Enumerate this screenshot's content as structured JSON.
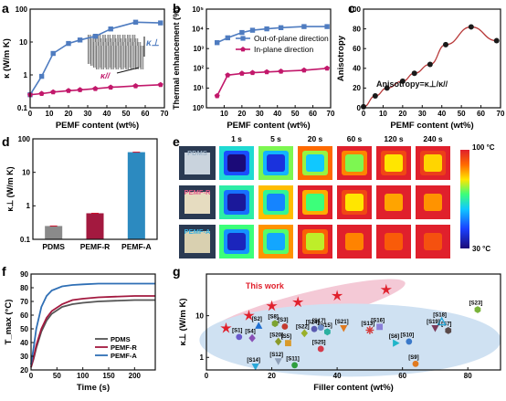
{
  "panels": {
    "a": {
      "letter": "a"
    },
    "b": {
      "letter": "b"
    },
    "c": {
      "letter": "c"
    },
    "d": {
      "letter": "d"
    },
    "e": {
      "letter": "e"
    },
    "f": {
      "letter": "f"
    },
    "g": {
      "letter": "g"
    }
  },
  "colors": {
    "blue": "#4f7cc0",
    "magenta": "#c2186b",
    "black": "#1a1a1a",
    "red_marker": "#e0202c",
    "gray_bar": "#8a8a8a",
    "crimson_bar": "#a3193f",
    "cyan_bar": "#2c8ac0",
    "pink_band": "#f4c9d6",
    "blue_band": "#cfe1f2"
  },
  "chart_data": [
    {
      "panel": "a",
      "type": "line",
      "xlabel": "PEMF content (wt%)",
      "ylabel": "κ (W/m K)",
      "yscale": "log",
      "xlim": [
        0,
        70
      ],
      "ylim": [
        0.1,
        100
      ],
      "xticks": [
        0,
        10,
        20,
        30,
        40,
        50,
        60,
        70
      ],
      "yticks": [
        0.1,
        1,
        10,
        100
      ],
      "ytick_labels": [
        "0.1",
        "1",
        "10",
        "100"
      ],
      "inset_labels": {
        "perp": "κ⊥",
        "par": "κ//"
      },
      "series": [
        {
          "name": "κ⊥",
          "x": [
            0,
            6,
            12,
            20,
            26,
            34,
            42,
            55,
            68
          ],
          "y": [
            0.25,
            0.9,
            4.5,
            9,
            11.5,
            15,
            25,
            40,
            38
          ]
        },
        {
          "name": "κ//",
          "x": [
            0,
            6,
            12,
            20,
            26,
            34,
            42,
            55,
            68
          ],
          "y": [
            0.25,
            0.27,
            0.3,
            0.33,
            0.35,
            0.38,
            0.42,
            0.46,
            0.5
          ]
        }
      ]
    },
    {
      "panel": "b",
      "type": "line",
      "xlabel": "PEMF content (wt%)",
      "ylabel": "Thermal enhancement (%)",
      "yscale": "log",
      "xlim": [
        0,
        70
      ],
      "ylim": [
        1,
        100000
      ],
      "xticks": [
        10,
        20,
        30,
        40,
        50,
        60,
        70
      ],
      "yticks": [
        1,
        10,
        100,
        1000,
        10000,
        100000
      ],
      "ytick_labels": [
        "10⁰",
        "10¹",
        "10²",
        "10³",
        "10⁴",
        "10⁵"
      ],
      "legend_position": "top-right",
      "series": [
        {
          "name": "Out-of-plane direction",
          "x": [
            6,
            12,
            20,
            26,
            34,
            42,
            55,
            68
          ],
          "y": [
            2000,
            3500,
            6500,
            8500,
            10000,
            11500,
            13000,
            13000
          ]
        },
        {
          "name": "In-plane direction",
          "x": [
            6,
            12,
            20,
            26,
            34,
            42,
            55,
            68
          ],
          "y": [
            4,
            45,
            55,
            60,
            65,
            70,
            80,
            100
          ]
        }
      ]
    },
    {
      "panel": "c",
      "type": "scatter",
      "xlabel": "PEMF content (wt%)",
      "ylabel": "Anisotropy",
      "xlim": [
        0,
        70
      ],
      "ylim": [
        0,
        100
      ],
      "xticks": [
        0,
        10,
        20,
        30,
        40,
        50,
        60,
        70
      ],
      "yticks": [
        0,
        20,
        40,
        60,
        80,
        100
      ],
      "annotation": "Anisotropy=κ⊥/κ//",
      "series": [
        {
          "name": "Anisotropy",
          "x": [
            0,
            6,
            12,
            20,
            26,
            34,
            42,
            55,
            68
          ],
          "y": [
            1,
            12,
            20,
            27,
            35,
            44,
            64,
            82,
            68
          ]
        }
      ]
    },
    {
      "panel": "d",
      "type": "bar",
      "ylabel": "κ⊥ (W/m K)",
      "yscale": "log",
      "ylim": [
        0.1,
        100
      ],
      "yticks": [
        0.1,
        1,
        10,
        100
      ],
      "ytick_labels": [
        "0.1",
        "1",
        "10",
        "100"
      ],
      "categories": [
        "PDMS",
        "PEMF-R",
        "PEMF-A"
      ],
      "values": [
        0.25,
        0.6,
        40
      ]
    },
    {
      "panel": "e",
      "type": "heatmap",
      "time_labels": [
        "1 s",
        "5 s",
        "20 s",
        "60 s",
        "120 s",
        "240 s"
      ],
      "row_labels": [
        "PDMS",
        "PEMF-R",
        "PEMF-A"
      ],
      "colorbar_max": "100 °C",
      "colorbar_min": "30 °C",
      "center_temperature_index": [
        [
          0.0,
          0.15,
          0.4,
          0.6,
          0.7,
          0.72
        ],
        [
          0.05,
          0.3,
          0.55,
          0.7,
          0.78,
          0.8
        ],
        [
          0.1,
          0.35,
          0.65,
          0.82,
          0.88,
          0.9
        ]
      ]
    },
    {
      "panel": "f",
      "type": "line",
      "xlabel": "Time (s)",
      "ylabel": "T_max (°C)",
      "xlim": [
        0,
        240
      ],
      "ylim": [
        20,
        90
      ],
      "xticks": [
        0,
        50,
        100,
        150,
        200
      ],
      "yticks": [
        20,
        30,
        40,
        50,
        60,
        70,
        80,
        90
      ],
      "legend_position": "lower-right",
      "series": [
        {
          "name": "PDMS",
          "x": [
            0,
            5,
            10,
            20,
            30,
            40,
            60,
            80,
            100,
            130,
            160,
            200,
            240
          ],
          "y": [
            22,
            28,
            36,
            48,
            56,
            61,
            66,
            68,
            69,
            70,
            70.5,
            71,
            71
          ]
        },
        {
          "name": "PEMF-R",
          "x": [
            0,
            5,
            10,
            20,
            30,
            40,
            60,
            80,
            100,
            130,
            160,
            200,
            240
          ],
          "y": [
            22,
            29,
            38,
            50,
            58,
            63,
            68,
            71,
            72,
            73,
            73.5,
            74,
            74
          ]
        },
        {
          "name": "PEMF-A",
          "x": [
            0,
            5,
            10,
            20,
            30,
            40,
            60,
            80,
            100,
            130,
            160,
            200,
            240
          ],
          "y": [
            24,
            36,
            50,
            66,
            74,
            78,
            81,
            82,
            82.5,
            83,
            83,
            83,
            83
          ]
        }
      ]
    },
    {
      "panel": "g",
      "type": "scatter",
      "xlabel": "Filler content (wt%)",
      "ylabel": "κ⊥ (W/m K)",
      "yscale": "log",
      "xlim": [
        0,
        90
      ],
      "ylim": [
        0.5,
        100
      ],
      "xticks": [
        0,
        20,
        40,
        60,
        80
      ],
      "yticks": [
        1,
        10
      ],
      "ytick_labels": [
        "1",
        "10"
      ],
      "annotation": "This work",
      "this_work": {
        "x": [
          6,
          13,
          20,
          28,
          40,
          55
        ],
        "y": [
          5,
          10,
          17,
          21,
          30,
          42
        ]
      },
      "references": [
        {
          "label": "[S1]",
          "x": 10,
          "y": 3.1,
          "shape": "circle",
          "color": "#6a5acd"
        },
        {
          "label": "[S2]",
          "x": 16,
          "y": 5.8,
          "shape": "triangle",
          "color": "#1f6fd1"
        },
        {
          "label": "[S3]",
          "x": 24,
          "y": 5.5,
          "shape": "circle",
          "color": "#c43a2e"
        },
        {
          "label": "[S4]",
          "x": 14,
          "y": 2.9,
          "shape": "diamond",
          "color": "#8a4fb5"
        },
        {
          "label": "[S5]",
          "x": 25,
          "y": 2.2,
          "shape": "square",
          "color": "#d99a2b"
        },
        {
          "label": "[S6]",
          "x": 58,
          "y": 2.2,
          "shape": "triangle-right",
          "color": "#1fb5c9"
        },
        {
          "label": "[S7]",
          "x": 74,
          "y": 4.4,
          "shape": "hexagon",
          "color": "#5a4a4a"
        },
        {
          "label": "[S8]",
          "x": 21,
          "y": 6.5,
          "shape": "hexagon",
          "color": "#7da331"
        },
        {
          "label": "[S9]",
          "x": 64,
          "y": 0.7,
          "shape": "circle",
          "color": "#e07a20"
        },
        {
          "label": "[S10]",
          "x": 62,
          "y": 2.4,
          "shape": "circle",
          "color": "#3a78c9"
        },
        {
          "label": "[S11]",
          "x": 27,
          "y": 0.65,
          "shape": "circle",
          "color": "#2f9e3e"
        },
        {
          "label": "[S12]",
          "x": 22,
          "y": 0.8,
          "shape": "triangle-down",
          "color": "#8fa0b8"
        },
        {
          "label": "[S13]",
          "x": 50,
          "y": 4.5,
          "shape": "asterisk",
          "color": "#d43a3a"
        },
        {
          "label": "[S14]",
          "x": 15,
          "y": 0.6,
          "shape": "triangle-down",
          "color": "#2aa8d8"
        },
        {
          "label": "[S15]",
          "x": 37,
          "y": 4.1,
          "shape": "hexagon",
          "color": "#2bb0a0"
        },
        {
          "label": "[S16]",
          "x": 53,
          "y": 5.4,
          "shape": "square",
          "color": "#8a7fd8"
        },
        {
          "label": "[S17]",
          "x": 35,
          "y": 5.2,
          "shape": "circle",
          "color": "#6b8cc9"
        },
        {
          "label": "[S18]",
          "x": 72,
          "y": 7.2,
          "shape": "triangle-outline",
          "color": "#2aa8d8"
        },
        {
          "label": "[S19]",
          "x": 70,
          "y": 5.0,
          "shape": "triangle-down",
          "color": "#7a3a5a"
        },
        {
          "label": "[S20]",
          "x": 22,
          "y": 2.4,
          "shape": "diamond",
          "color": "#8a9a2a"
        },
        {
          "label": "[S21]",
          "x": 42,
          "y": 5.0,
          "shape": "triangle-down",
          "color": "#e07a20"
        },
        {
          "label": "[S22]",
          "x": 30,
          "y": 3.8,
          "shape": "diamond",
          "color": "#9ab02a"
        },
        {
          "label": "[S23]",
          "x": 83,
          "y": 14,
          "shape": "hexagon",
          "color": "#7ab33a"
        },
        {
          "label": "[S24]",
          "x": 33,
          "y": 4.8,
          "shape": "circle",
          "color": "#5a5ab0"
        },
        {
          "label": "[S25]",
          "x": 35,
          "y": 1.6,
          "shape": "circle",
          "color": "#d43a4a"
        }
      ]
    }
  ]
}
